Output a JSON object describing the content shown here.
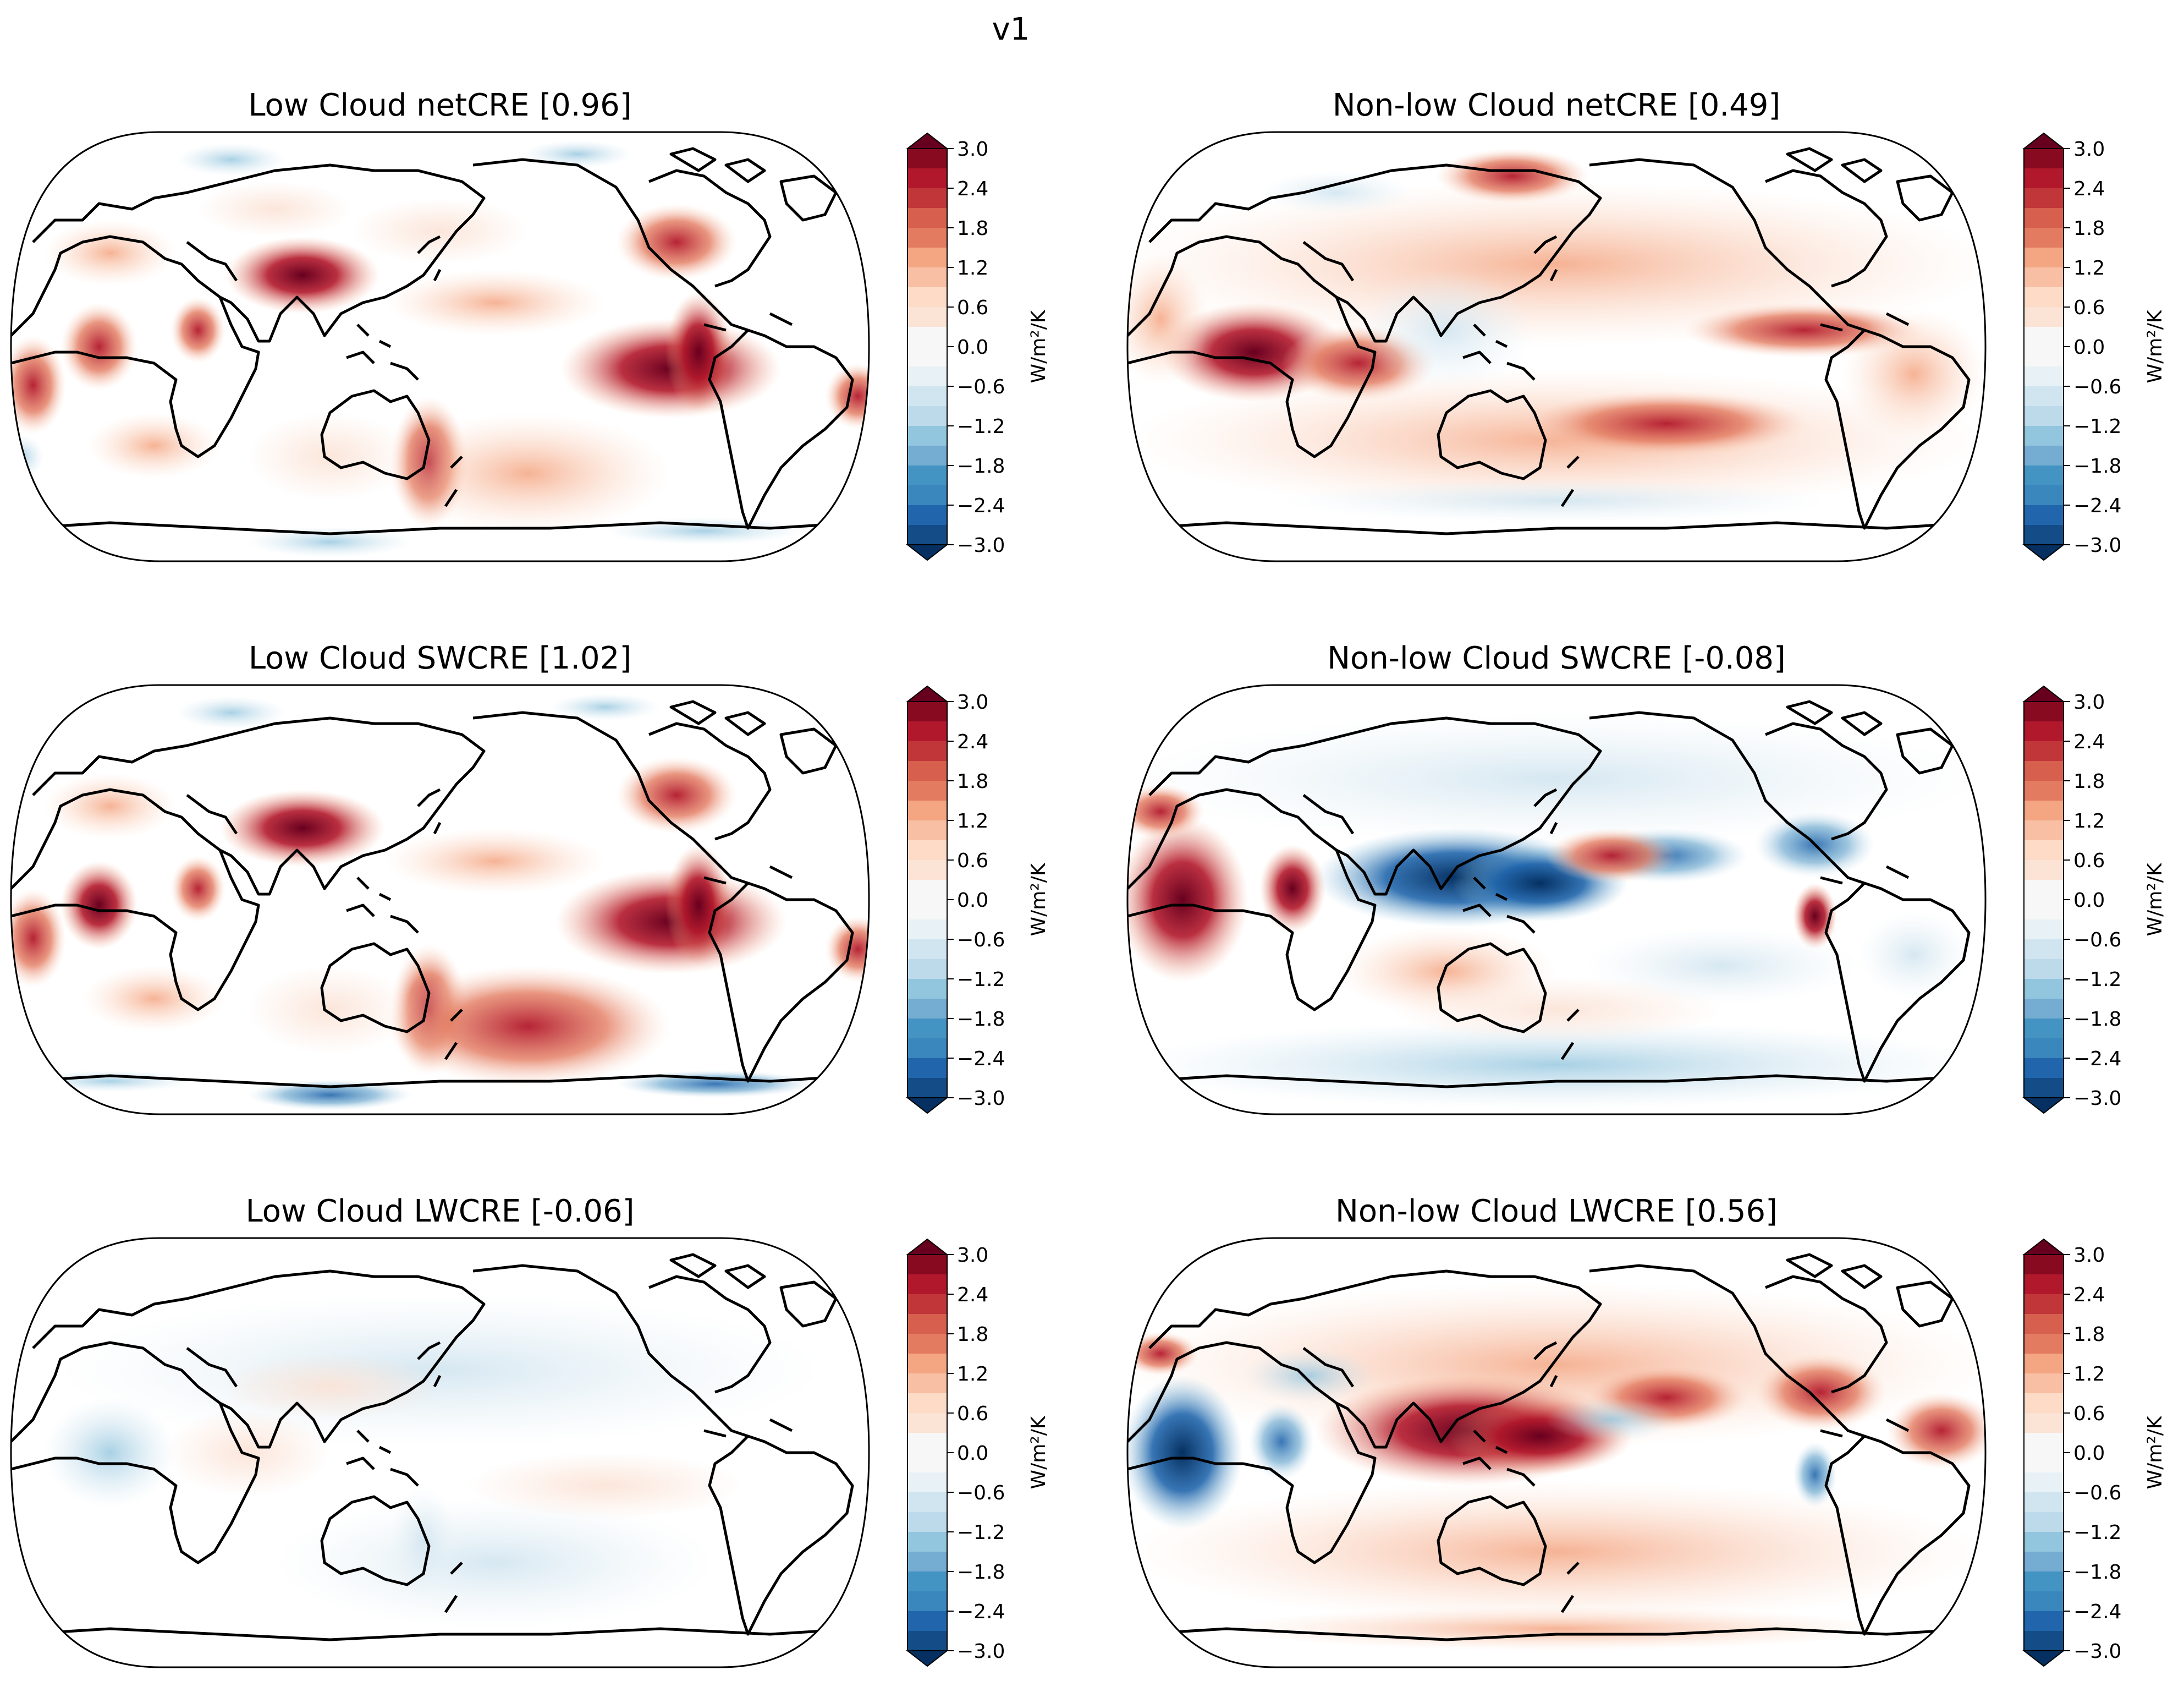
{
  "figure_title": "v1",
  "colorbar": {
    "ticks": [
      "3.0",
      "2.4",
      "1.8",
      "1.2",
      "0.6",
      "0.0",
      "−0.6",
      "−1.2",
      "−1.8",
      "−2.4",
      "−3.0"
    ],
    "unit_label": "W/m²/K",
    "colors": [
      "#053061",
      "#134c87",
      "#2166ac",
      "#3a87bd",
      "#4393c3",
      "#74add1",
      "#92c5de",
      "#bcdaea",
      "#d1e5f0",
      "#e8f1f6",
      "#f7f7f7",
      "#f7f7f7",
      "#fbe3d6",
      "#fddbc7",
      "#f8bfa4",
      "#f4a582",
      "#e37b60",
      "#d6604d",
      "#c13639",
      "#b2182b",
      "#880a20",
      "#67001f"
    ]
  },
  "chart_data": [
    {
      "type": "heatmap",
      "title": "Low Cloud netCRE [0.96]",
      "variable": "Low Cloud netCRE",
      "global_mean": 0.96,
      "vmin": -3.0,
      "vmax": 3.0,
      "colorbar_ticks": [
        3.0,
        2.4,
        1.8,
        1.2,
        0.6,
        0.0,
        -0.6,
        -1.2,
        -1.8,
        -2.4,
        -3.0
      ],
      "colorbar_label": "W/m²/K",
      "projection": "Robinson"
    },
    {
      "type": "heatmap",
      "title": "Non-low Cloud netCRE [0.49]",
      "variable": "Non-low Cloud netCRE",
      "global_mean": 0.49,
      "vmin": -3.0,
      "vmax": 3.0,
      "colorbar_ticks": [
        3.0,
        2.4,
        1.8,
        1.2,
        0.6,
        0.0,
        -0.6,
        -1.2,
        -1.8,
        -2.4,
        -3.0
      ],
      "colorbar_label": "W/m²/K",
      "projection": "Robinson"
    },
    {
      "type": "heatmap",
      "title": "Low Cloud SWCRE [1.02]",
      "variable": "Low Cloud SWCRE",
      "global_mean": 1.02,
      "vmin": -3.0,
      "vmax": 3.0,
      "colorbar_ticks": [
        3.0,
        2.4,
        1.8,
        1.2,
        0.6,
        0.0,
        -0.6,
        -1.2,
        -1.8,
        -2.4,
        -3.0
      ],
      "colorbar_label": "W/m²/K",
      "projection": "Robinson"
    },
    {
      "type": "heatmap",
      "title": "Non-low Cloud SWCRE [-0.08]",
      "variable": "Non-low Cloud SWCRE",
      "global_mean": -0.08,
      "vmin": -3.0,
      "vmax": 3.0,
      "colorbar_ticks": [
        3.0,
        2.4,
        1.8,
        1.2,
        0.6,
        0.0,
        -0.6,
        -1.2,
        -1.8,
        -2.4,
        -3.0
      ],
      "colorbar_label": "W/m²/K",
      "projection": "Robinson"
    },
    {
      "type": "heatmap",
      "title": "Low Cloud LWCRE [-0.06]",
      "variable": "Low Cloud LWCRE",
      "global_mean": -0.06,
      "vmin": -3.0,
      "vmax": 3.0,
      "colorbar_ticks": [
        3.0,
        2.4,
        1.8,
        1.2,
        0.6,
        0.0,
        -0.6,
        -1.2,
        -1.8,
        -2.4,
        -3.0
      ],
      "colorbar_label": "W/m²/K",
      "projection": "Robinson"
    },
    {
      "type": "heatmap",
      "title": "Non-low Cloud LWCRE [0.56]",
      "variable": "Non-low Cloud LWCRE",
      "global_mean": 0.56,
      "vmin": -3.0,
      "vmax": 3.0,
      "colorbar_ticks": [
        3.0,
        2.4,
        1.8,
        1.2,
        0.6,
        0.0,
        -0.6,
        -1.2,
        -1.8,
        -2.4,
        -3.0
      ],
      "colorbar_label": "W/m²/K",
      "projection": "Robinson"
    }
  ]
}
